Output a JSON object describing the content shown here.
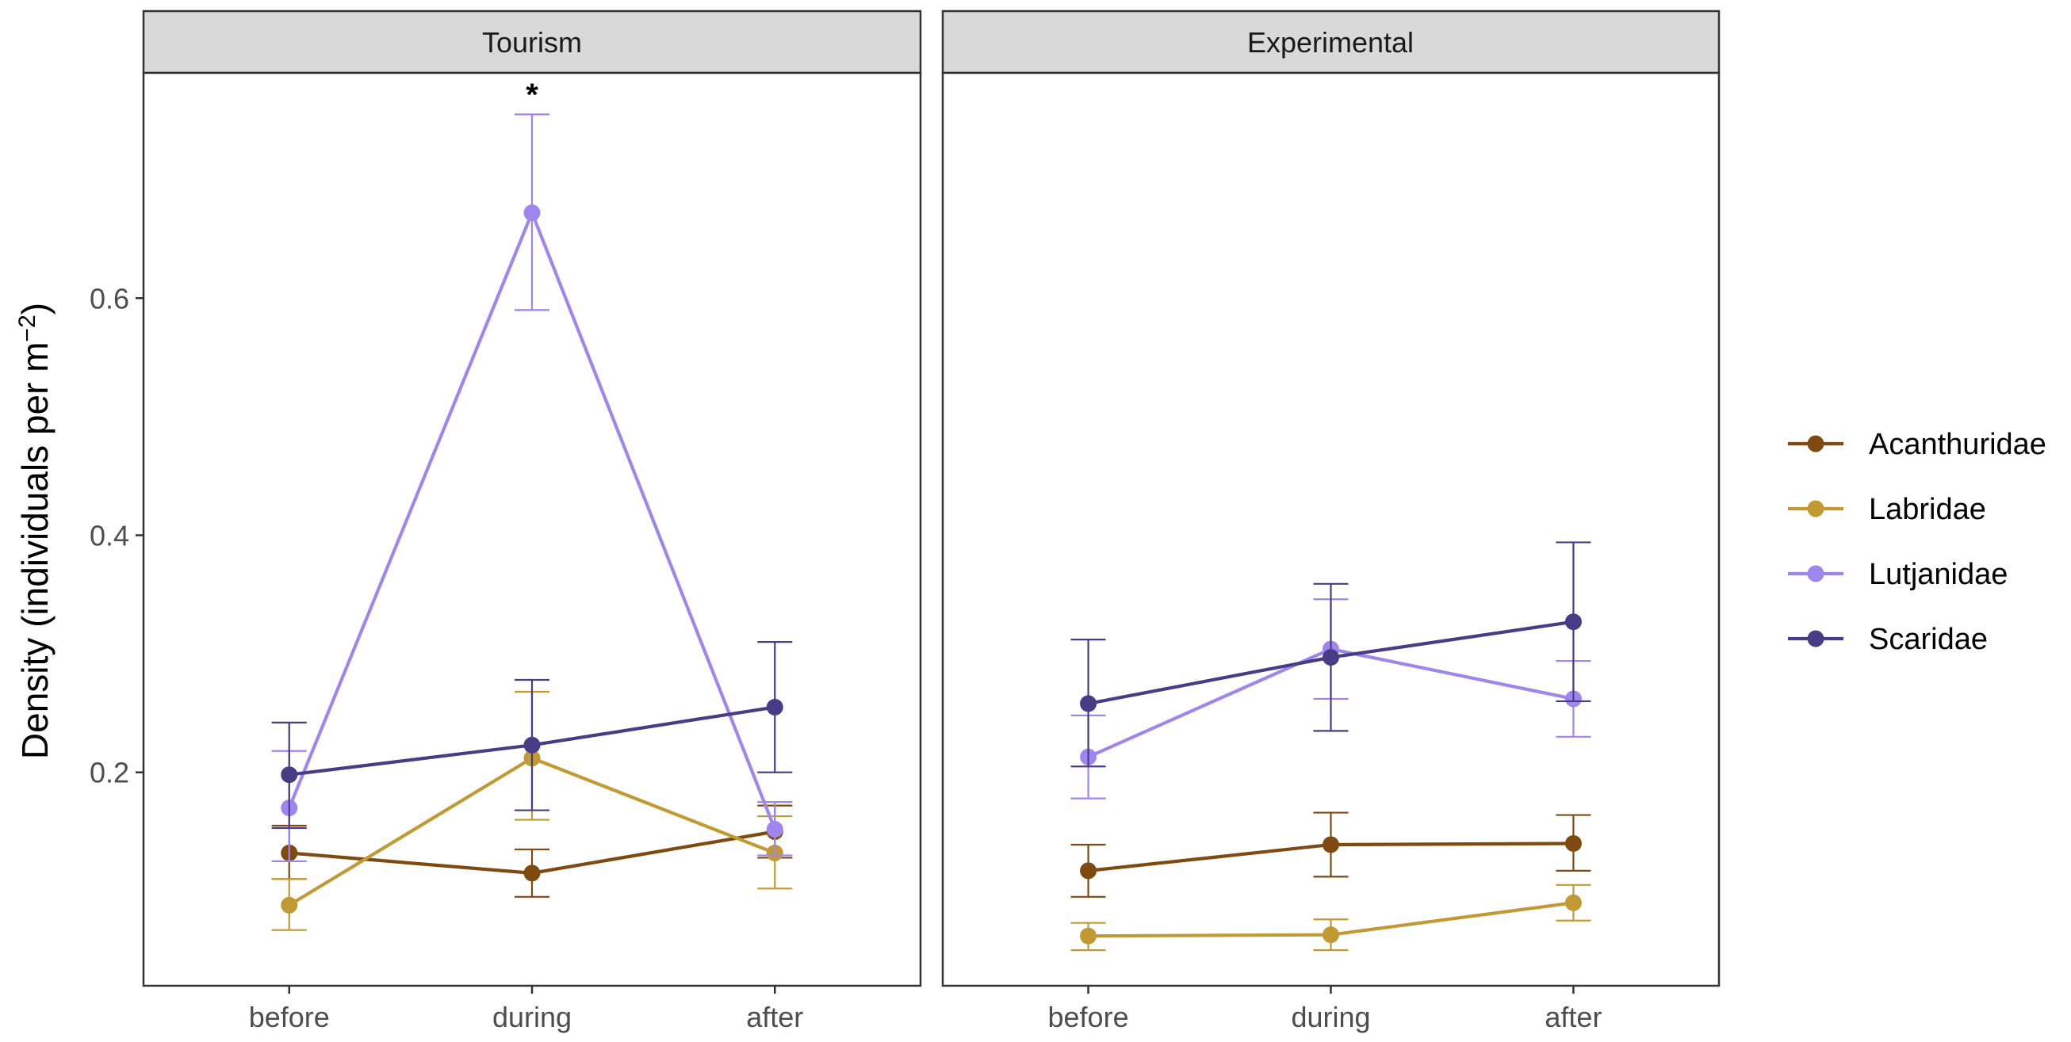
{
  "chart_data": {
    "type": "line",
    "ylabel_main": "Density (individuals per m",
    "ylabel_sup": "−2",
    "ylabel_close": ")",
    "xlabel": "",
    "categories": [
      "before",
      "during",
      "after"
    ],
    "ylim": [
      0.02,
      0.79
    ],
    "yticks": [
      0.2,
      0.4,
      0.6
    ],
    "ytick_labels": [
      "0.2",
      "0.4",
      "0.6"
    ],
    "legend_position": "right",
    "series_styles": [
      {
        "name": "Acanthuridae",
        "color": "#7f4a10"
      },
      {
        "name": "Labridae",
        "color": "#c29a33"
      },
      {
        "name": "Lutjanidae",
        "color": "#9f86ee"
      },
      {
        "name": "Scaridae",
        "color": "#463d86"
      }
    ],
    "panels": [
      {
        "title": "Tourism",
        "annotation": {
          "text": "*",
          "category": "during",
          "y": 0.772
        },
        "series": [
          {
            "name": "Acanthuridae",
            "values": [
              0.132,
              0.115,
              0.15
            ],
            "lower": [
              0.11,
              0.095,
              0.128
            ],
            "upper": [
              0.155,
              0.135,
              0.172
            ]
          },
          {
            "name": "Labridae",
            "values": [
              0.088,
              0.212,
              0.132
            ],
            "lower": [
              0.067,
              0.16,
              0.102
            ],
            "upper": [
              0.11,
              0.268,
              0.163
            ]
          },
          {
            "name": "Lutjanidae",
            "values": [
              0.17,
              0.672,
              0.152
            ],
            "lower": [
              0.125,
              0.59,
              0.13
            ],
            "upper": [
              0.218,
              0.755,
              0.175
            ]
          },
          {
            "name": "Scaridae",
            "values": [
              0.198,
              0.223,
              0.255
            ],
            "lower": [
              0.153,
              0.168,
              0.2
            ],
            "upper": [
              0.242,
              0.278,
              0.31
            ]
          }
        ]
      },
      {
        "title": "Experimental",
        "series": [
          {
            "name": "Acanthuridae",
            "values": [
              0.117,
              0.139,
              0.14
            ],
            "lower": [
              0.095,
              0.112,
              0.117
            ],
            "upper": [
              0.139,
              0.166,
              0.164
            ]
          },
          {
            "name": "Labridae",
            "values": [
              0.062,
              0.063,
              0.09
            ],
            "lower": [
              0.05,
              0.05,
              0.075
            ],
            "upper": [
              0.073,
              0.076,
              0.105
            ]
          },
          {
            "name": "Lutjanidae",
            "values": [
              0.213,
              0.304,
              0.262
            ],
            "lower": [
              0.178,
              0.262,
              0.23
            ],
            "upper": [
              0.248,
              0.346,
              0.294
            ]
          },
          {
            "name": "Scaridae",
            "values": [
              0.258,
              0.297,
              0.327
            ],
            "lower": [
              0.205,
              0.235,
              0.26
            ],
            "upper": [
              0.312,
              0.359,
              0.394
            ]
          }
        ]
      }
    ]
  }
}
